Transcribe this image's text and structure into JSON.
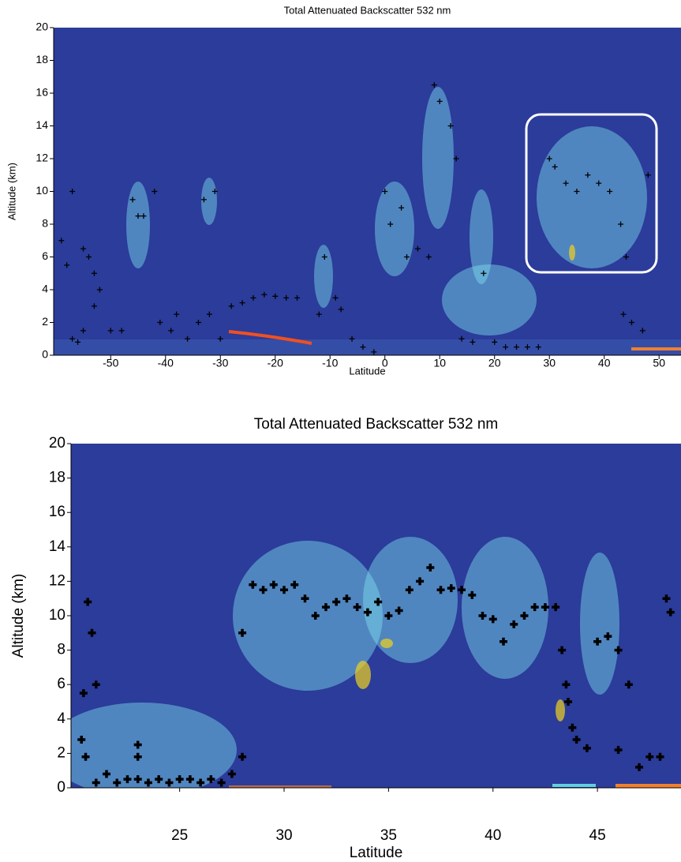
{
  "chart_data": [
    {
      "type": "scatter",
      "title": "Total Attenuated Backscatter 532 nm",
      "xlabel": "Latitude",
      "ylabel": "Altitude (km)",
      "xlim": [
        -60.4,
        54
      ],
      "ylim": [
        0,
        20
      ],
      "xticks": [
        -50,
        -40,
        -30,
        -20,
        -10,
        0,
        10,
        20,
        30,
        40,
        50
      ],
      "yticks": [
        0,
        2,
        4,
        6,
        8,
        10,
        12,
        14,
        16,
        18,
        20
      ],
      "marker_color": "#000000",
      "x": [
        -59,
        -58,
        -57,
        -56,
        -57,
        -55,
        -54,
        -53,
        -52,
        -53,
        -55,
        -50,
        -48,
        -46,
        -45,
        -44,
        -42,
        -41,
        -39,
        -38,
        -36,
        -34,
        -33,
        -31,
        -32,
        -30,
        -28,
        -26,
        -24,
        -22,
        -20,
        -18,
        -16,
        -12,
        -11,
        -9,
        -8,
        -6,
        -4,
        -2,
        0,
        1,
        3,
        4,
        6,
        8,
        9,
        10,
        12,
        13,
        14,
        16,
        18,
        20,
        22,
        24,
        26,
        28,
        30,
        31,
        33,
        35,
        37,
        39,
        41,
        43,
        44,
        43.5,
        45,
        47,
        48
      ],
      "values": [
        7,
        5.5,
        1,
        0.8,
        10,
        6.5,
        6,
        5,
        4,
        3,
        1.5,
        1.5,
        1.5,
        9.5,
        8.5,
        8.5,
        10,
        2,
        1.5,
        2.5,
        1,
        2,
        9.5,
        10,
        2.5,
        1,
        3,
        3.2,
        3.5,
        3.7,
        3.6,
        3.5,
        3.5,
        2.5,
        6,
        3.5,
        2.8,
        1,
        0.5,
        0.2,
        10,
        8,
        9,
        6,
        6.5,
        6,
        16.5,
        15.5,
        14,
        12,
        1,
        0.8,
        5,
        0.8,
        0.5,
        0.5,
        0.5,
        0.5,
        12,
        11.5,
        10.5,
        10,
        11,
        10.5,
        10,
        8,
        6,
        2.5,
        2,
        1.5,
        11
      ]
    },
    {
      "type": "scatter",
      "title": "Total Attenuated Backscatter 532 nm",
      "xlabel": "Latitude",
      "ylabel": "Altitude (km)",
      "xlim": [
        19.8,
        49
      ],
      "ylim": [
        0,
        20
      ],
      "xticks": [
        25,
        30,
        35,
        40,
        45
      ],
      "yticks": [
        0,
        2,
        4,
        6,
        8,
        10,
        12,
        14,
        16,
        18,
        20
      ],
      "marker_color": "#000000",
      "x": [
        20.4,
        20.3,
        20.5,
        20.6,
        20.8,
        21,
        21,
        21.5,
        22,
        22.5,
        23,
        23.5,
        24,
        24.5,
        25,
        25.5,
        26,
        26.5,
        27,
        27.5,
        28,
        28,
        28.5,
        29,
        29.5,
        30,
        30.5,
        31,
        31.5,
        32,
        32.5,
        33,
        33.5,
        34,
        34.5,
        35,
        35.5,
        36,
        36.5,
        37,
        37.5,
        38,
        38.5,
        39,
        39.5,
        40,
        40.5,
        41,
        41.5,
        42,
        42.5,
        43,
        43.3,
        43.5,
        43.6,
        43.8,
        44,
        44.5,
        45,
        45.5,
        46,
        46,
        46.5,
        47,
        47.5,
        48,
        48.3,
        48.5,
        23,
        23
      ],
      "values": [
        5.5,
        2.8,
        1.8,
        10.8,
        9,
        6,
        0.3,
        0.8,
        0.3,
        0.5,
        0.5,
        0.3,
        0.5,
        0.3,
        0.5,
        0.5,
        0.3,
        0.5,
        0.3,
        0.8,
        1.8,
        9,
        11.8,
        11.5,
        11.8,
        11.5,
        11.8,
        11,
        10,
        10.5,
        10.8,
        11,
        10.5,
        10.2,
        10.8,
        10,
        10.3,
        11.5,
        12,
        12.8,
        11.5,
        11.6,
        11.5,
        11.2,
        10,
        9.8,
        8.5,
        9.5,
        10,
        10.5,
        10.5,
        10.5,
        8,
        6,
        5,
        3.5,
        2.8,
        2.3,
        8.5,
        8.8,
        8,
        2.2,
        6,
        1.2,
        1.8,
        1.8,
        11,
        10.2,
        2.5,
        1.8
      ]
    }
  ]
}
